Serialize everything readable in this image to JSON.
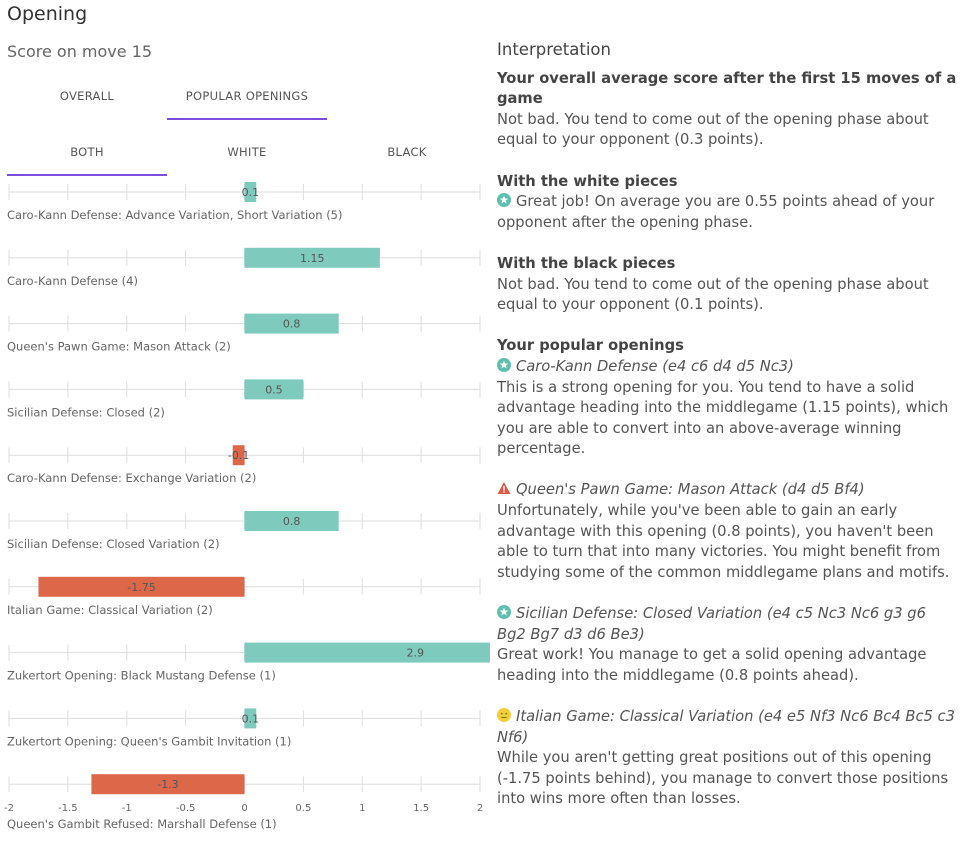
{
  "page": {
    "title": "Opening",
    "subtitle": "Score on move 15"
  },
  "tabs_main": [
    {
      "label": "OVERALL",
      "active": false
    },
    {
      "label": "POPULAR OPENINGS",
      "active": true
    }
  ],
  "tabs_color": [
    {
      "label": "BOTH",
      "active": true
    },
    {
      "label": "WHITE",
      "active": false
    },
    {
      "label": "BLACK",
      "active": false
    }
  ],
  "colors": {
    "positive": "#7ecbbd",
    "negative": "#dd6749",
    "accent": "#7c4ddd",
    "grid": "#dddddd"
  },
  "chart_data": {
    "type": "bar",
    "orientation": "horizontal",
    "categories": [
      "Caro-Kann Defense: Advance Variation, Short Variation (5)",
      "Caro-Kann Defense (4)",
      "Queen's Pawn Game: Mason Attack (2)",
      "Sicilian Defense: Closed (2)",
      "Caro-Kann Defense: Exchange Variation (2)",
      "Sicilian Defense: Closed Variation (2)",
      "Italian Game: Classical Variation (2)",
      "Zukertort Opening: Black Mustang Defense (1)",
      "Zukertort Opening: Queen's Gambit Invitation (1)",
      "Queen's Gambit Refused: Marshall Defense (1)"
    ],
    "values": [
      0.1,
      1.15,
      0.8,
      0.5,
      -0.1,
      0.8,
      -1.75,
      2.9,
      0.1,
      -1.3
    ],
    "value_labels": [
      "0.1",
      "1.15",
      "0.8",
      "0.5",
      "-0.1",
      "0.8",
      "-1.75",
      "2.9",
      "0.1",
      "-1.3"
    ],
    "xlim": [
      -2,
      2
    ],
    "x_ticks": [
      -2,
      -1.5,
      -1,
      -0.5,
      0,
      0.5,
      1,
      1.5,
      2
    ],
    "x_tick_labels": [
      "-2",
      "-1.5",
      "-1",
      "-0.5",
      "0",
      "0.5",
      "1",
      "1.5",
      "2"
    ],
    "grid": true
  },
  "interpretation": {
    "heading": "Interpretation",
    "overall": {
      "title": "Your overall average score after the first 15 moves of a game",
      "text": "Not bad. You tend to come out of the opening phase about equal to your opponent (0.3 points)."
    },
    "white": {
      "title": "With the white pieces",
      "icon": "star-badge-icon",
      "text": "Great job! On average you are 0.55 points ahead of your opponent after the opening phase."
    },
    "black": {
      "title": "With the black pieces",
      "text": "Not bad. You tend to come out of the opening phase about equal to your opponent (0.1 points)."
    },
    "popular": {
      "title": "Your popular openings",
      "items": [
        {
          "icon": "star-badge-icon",
          "name": "Caro-Kann Defense (e4 c6 d4 d5 Nc3)",
          "text": "This is a strong opening for you. You tend to have a solid advantage heading into the middlegame (1.15 points), which you are able to convert into an above-average winning percentage."
        },
        {
          "icon": "warning-icon",
          "name": "Queen's Pawn Game: Mason Attack (d4 d5 Bf4)",
          "text": "Unfortunately, while you've been able to gain an early advantage with this opening (0.8 points), you haven't been able to turn that into many victories. You might benefit from studying some of the common middlegame plans and motifs."
        },
        {
          "icon": "star-badge-icon",
          "name": "Sicilian Defense: Closed Variation (e4 c5 Nc3 Nc6 g3 g6 Bg2 Bg7 d3 d6 Be3)",
          "text": "Great work! You manage to get a solid opening advantage heading into the middlegame (0.8 points ahead)."
        },
        {
          "icon": "neutral-face-icon",
          "name": "Italian Game: Classical Variation (e4 e5 Nf3 Nc6 Bc4 Bc5 c3 Nf6)",
          "text": "While you aren't getting great positions out of this opening (-1.75 points behind), you manage to convert those positions into wins more often than losses."
        }
      ]
    }
  }
}
